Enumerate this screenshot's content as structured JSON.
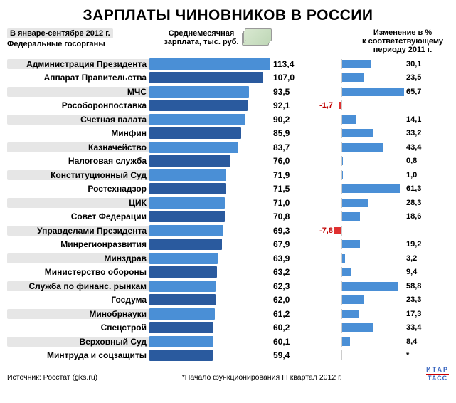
{
  "title": "ЗАРПЛАТЫ ЧИНОВНИКОВ В РОССИИ",
  "header": {
    "period": "В январе-сентябре 2012 г.",
    "subheader": "Федеральные госорганы",
    "salary_col": "Среднемесячная\nзарплата, тыс. руб.",
    "change_col": "Изменение в %\nк соответствующему\nпериоду 2011 г."
  },
  "chart": {
    "salary_max": 113.4,
    "change_max": 65.7,
    "neg_max": 7.8,
    "highlight_bar_color": "#4a8fd6",
    "normal_bar_color": "#2a5a9e",
    "change_bar_color": "#4a8fd6",
    "neg_bar_color": "#e03030",
    "neg_text_color": "#c00000",
    "rows": [
      {
        "label": "Администрация Президента",
        "salary": 113.4,
        "change": 30.1,
        "neg": null,
        "hl": true
      },
      {
        "label": "Аппарат Правительства",
        "salary": 107.0,
        "change": 23.5,
        "neg": null,
        "hl": false
      },
      {
        "label": "МЧС",
        "salary": 93.5,
        "change": 65.7,
        "neg": null,
        "hl": true
      },
      {
        "label": "Рособоронпоставка",
        "salary": 92.1,
        "change": null,
        "neg": -1.7,
        "hl": false
      },
      {
        "label": "Счетная палата",
        "salary": 90.2,
        "change": 14.1,
        "neg": null,
        "hl": true
      },
      {
        "label": "Минфин",
        "salary": 85.9,
        "change": 33.2,
        "neg": null,
        "hl": false
      },
      {
        "label": "Казначейство",
        "salary": 83.7,
        "change": 43.4,
        "neg": null,
        "hl": true
      },
      {
        "label": "Налоговая служба",
        "salary": 76.0,
        "change": 0.8,
        "neg": null,
        "hl": false
      },
      {
        "label": "Конституционный Суд",
        "salary": 71.9,
        "change": 1.0,
        "neg": null,
        "hl": true
      },
      {
        "label": "Ростехнадзор",
        "salary": 71.5,
        "change": 61.3,
        "neg": null,
        "hl": false
      },
      {
        "label": "ЦИК",
        "salary": 71.0,
        "change": 28.3,
        "neg": null,
        "hl": true
      },
      {
        "label": "Совет Федерации",
        "salary": 70.8,
        "change": 18.6,
        "neg": null,
        "hl": false
      },
      {
        "label": "Управделами Президента",
        "salary": 69.3,
        "change": null,
        "neg": -7.8,
        "hl": true
      },
      {
        "label": "Минрегионразвития",
        "salary": 67.9,
        "change": 19.2,
        "neg": null,
        "hl": false
      },
      {
        "label": "Минздрав",
        "salary": 63.9,
        "change": 3.2,
        "neg": null,
        "hl": true
      },
      {
        "label": "Министерство обороны",
        "salary": 63.2,
        "change": 9.4,
        "neg": null,
        "hl": false
      },
      {
        "label": "Служба по финанс. рынкам",
        "salary": 62.3,
        "change": 58.8,
        "neg": null,
        "hl": true
      },
      {
        "label": "Госдума",
        "salary": 62.0,
        "change": 23.3,
        "neg": null,
        "hl": false
      },
      {
        "label": "Минобрнауки",
        "salary": 61.2,
        "change": 17.3,
        "neg": null,
        "hl": true
      },
      {
        "label": "Спецстрой",
        "salary": 60.2,
        "change": 33.4,
        "neg": null,
        "hl": false
      },
      {
        "label": "Верховный Суд",
        "salary": 60.1,
        "change": 8.4,
        "neg": null,
        "hl": true
      },
      {
        "label": "Минтруда и соцзащиты",
        "salary": 59.4,
        "change": null,
        "neg": null,
        "hl": false,
        "note": "*"
      }
    ]
  },
  "footer": {
    "source": "Источник: Росстат (gks.ru)",
    "note": "*Начало функционирования III квартал 2012 г.",
    "logo_top": "ИТАР",
    "logo_bot": "ТАСС"
  }
}
